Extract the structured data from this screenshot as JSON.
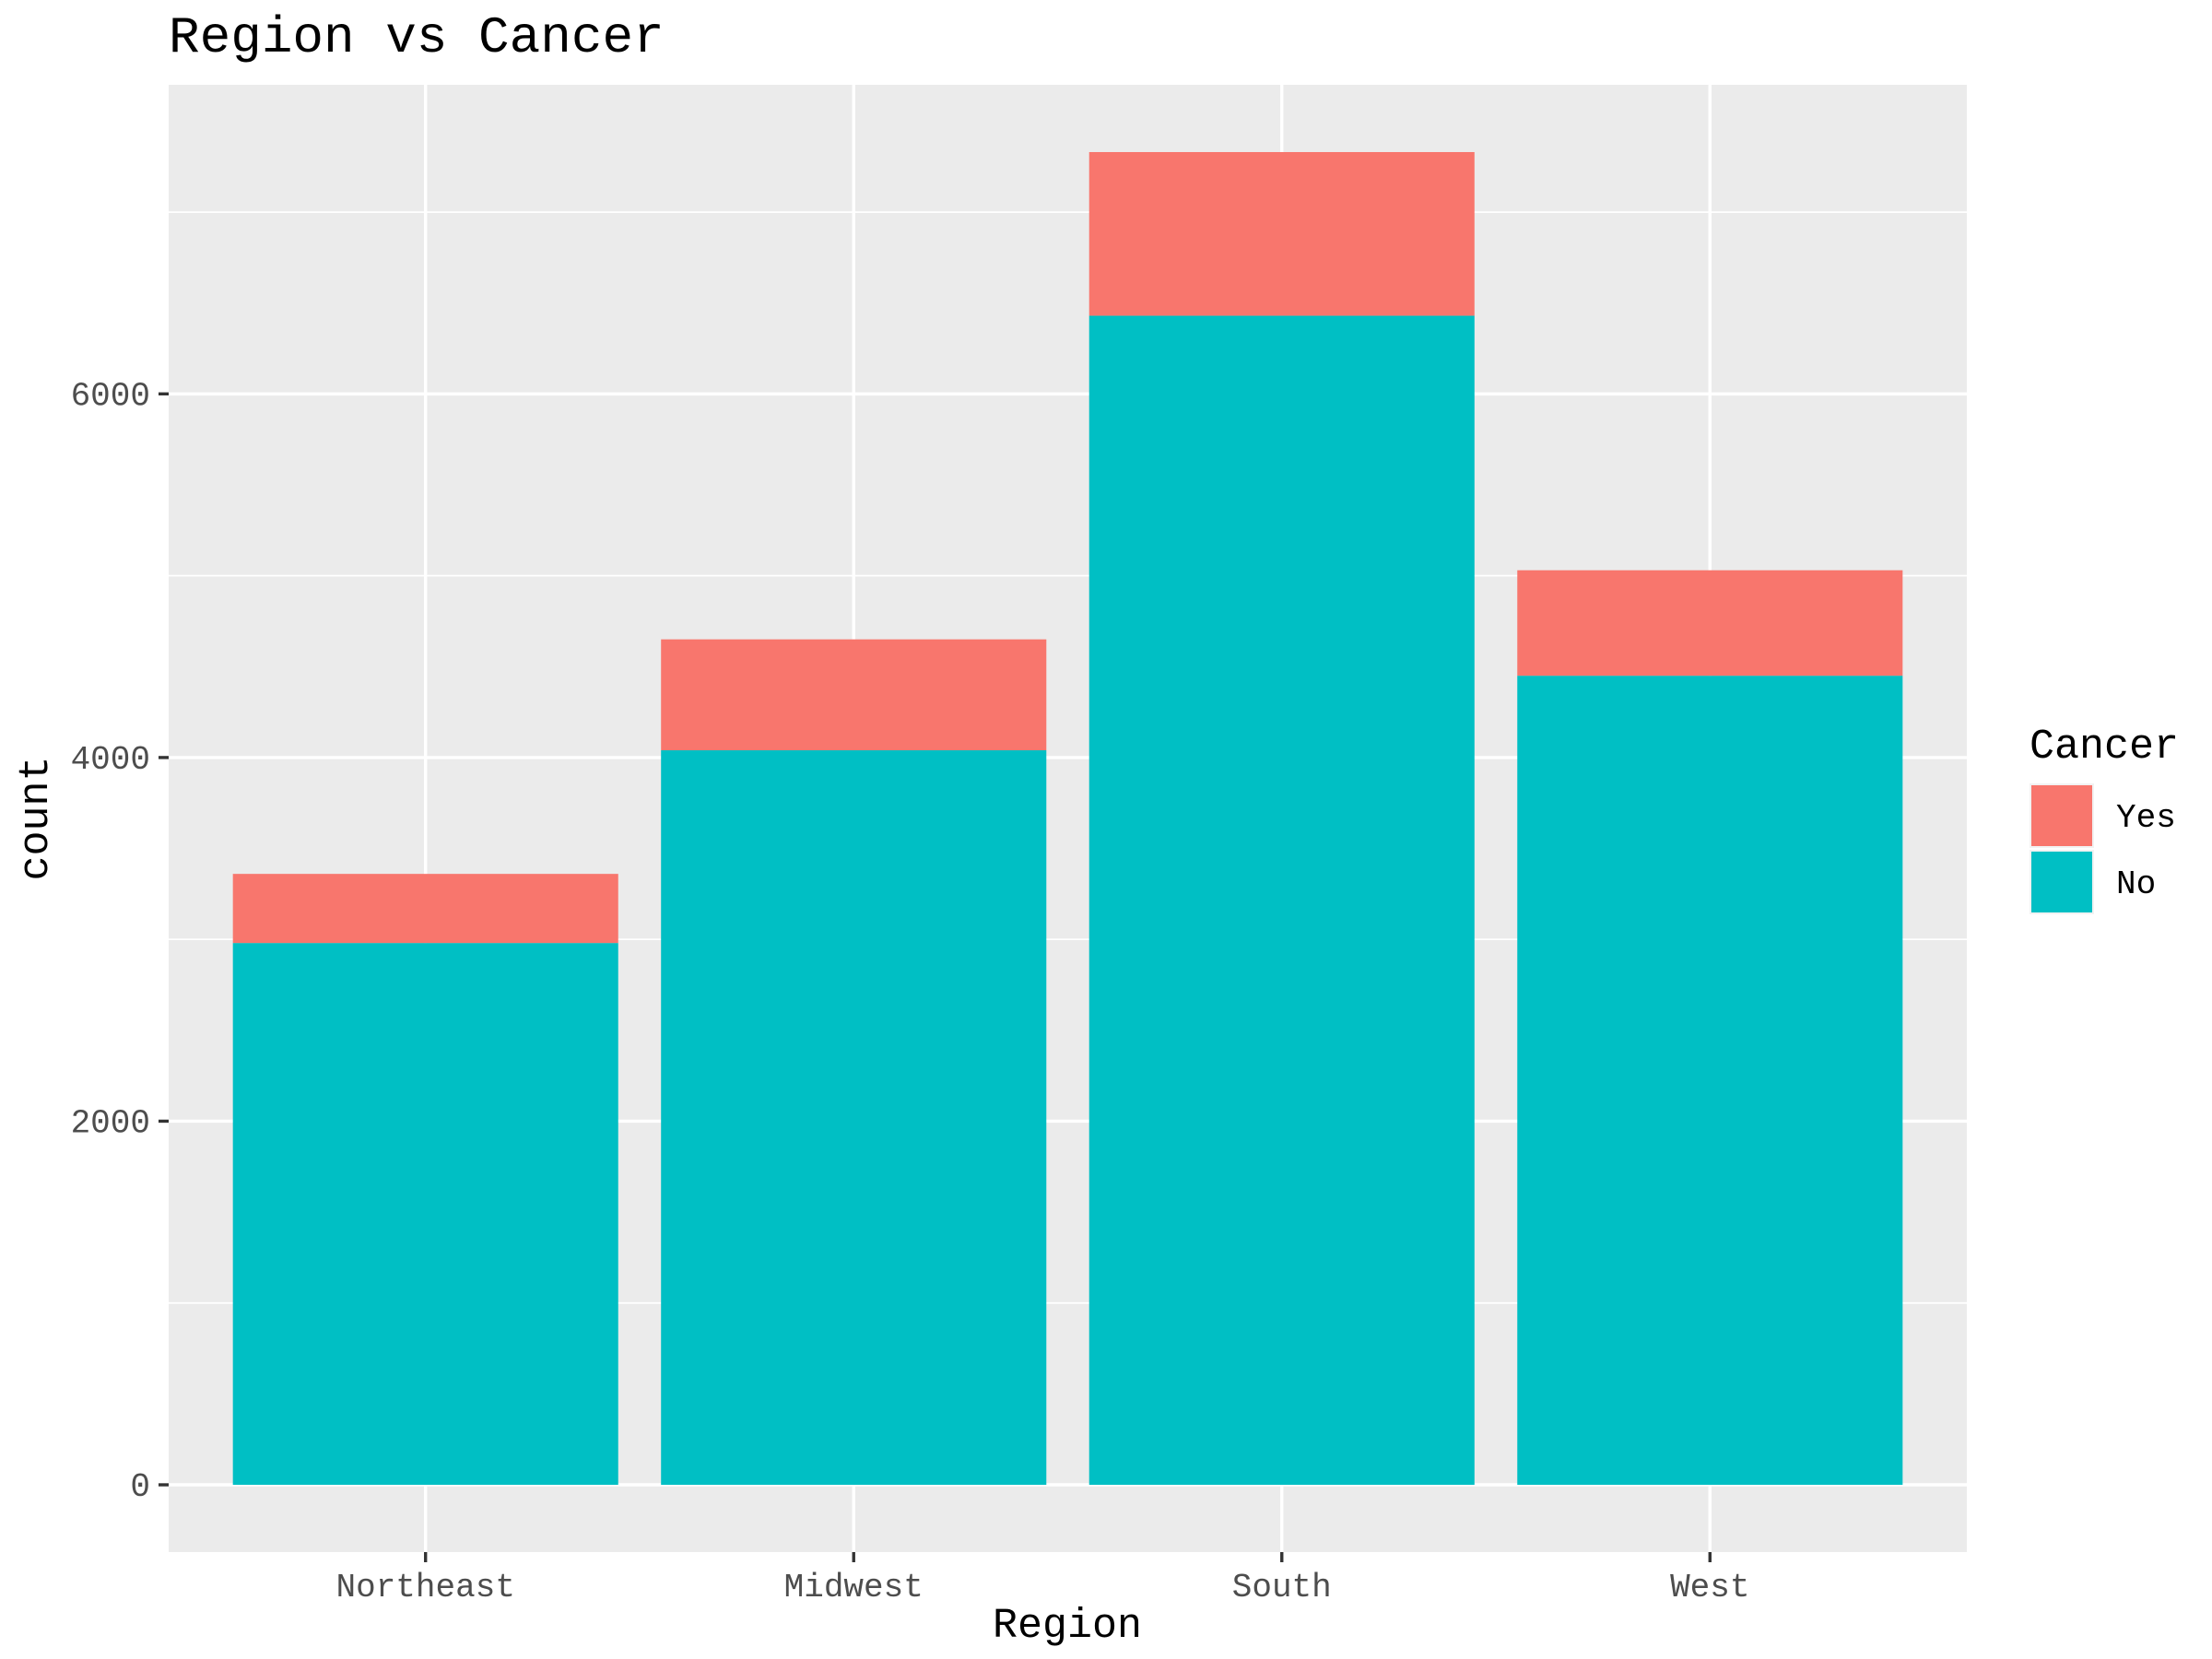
{
  "chart_data": {
    "type": "bar",
    "stacked": true,
    "title": "Region vs Cancer",
    "xlabel": "Region",
    "ylabel": "count",
    "categories": [
      "Northeast",
      "Midwest",
      "South",
      "West"
    ],
    "series": [
      {
        "name": "No",
        "values": [
          2980,
          4040,
          6430,
          4450
        ],
        "color": "#00BFC4"
      },
      {
        "name": "Yes",
        "values": [
          380,
          610,
          900,
          580
        ],
        "color": "#F8766D"
      }
    ],
    "ylim": [
      -370,
      7700
    ],
    "yticks": [
      0,
      2000,
      4000,
      6000
    ],
    "yticks_labels": [
      "0",
      "2000",
      "4000",
      "6000"
    ],
    "yminor": [
      1000,
      3000,
      5000,
      7000
    ],
    "grid": true,
    "panel_background": "#EBEBEB",
    "legend": {
      "title": "Cancer",
      "position": "right",
      "entries": [
        {
          "label": "Yes",
          "color": "#F8766D"
        },
        {
          "label": "No",
          "color": "#00BFC4"
        }
      ]
    }
  }
}
